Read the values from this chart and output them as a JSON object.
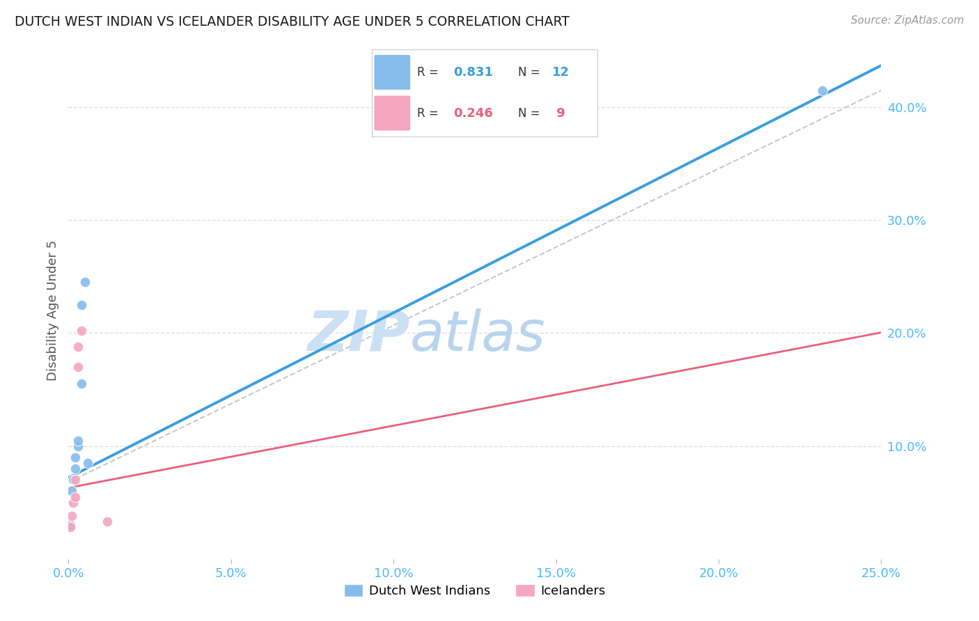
{
  "title": "DUTCH WEST INDIAN VS ICELANDER DISABILITY AGE UNDER 5 CORRELATION CHART",
  "source": "Source: ZipAtlas.com",
  "ylabel": "Disability Age Under 5",
  "xlim": [
    0.0,
    0.25
  ],
  "ylim": [
    0.0,
    0.44
  ],
  "xticks": [
    0.0,
    0.05,
    0.1,
    0.15,
    0.2,
    0.25
  ],
  "yticks": [
    0.1,
    0.2,
    0.3,
    0.4
  ],
  "ytick_labels": [
    "10.0%",
    "20.0%",
    "30.0%",
    "40.0%"
  ],
  "xtick_labels": [
    "0.0%",
    "5.0%",
    "10.0%",
    "15.0%",
    "20.0%",
    "25.0%"
  ],
  "blue_points": [
    [
      0.0005,
      0.03
    ],
    [
      0.001,
      0.06
    ],
    [
      0.0015,
      0.07
    ],
    [
      0.002,
      0.08
    ],
    [
      0.002,
      0.09
    ],
    [
      0.003,
      0.1
    ],
    [
      0.003,
      0.105
    ],
    [
      0.004,
      0.155
    ],
    [
      0.004,
      0.225
    ],
    [
      0.005,
      0.245
    ],
    [
      0.006,
      0.085
    ],
    [
      0.232,
      0.415
    ]
  ],
  "pink_points": [
    [
      0.0005,
      0.028
    ],
    [
      0.001,
      0.038
    ],
    [
      0.0015,
      0.05
    ],
    [
      0.002,
      0.055
    ],
    [
      0.002,
      0.07
    ],
    [
      0.003,
      0.17
    ],
    [
      0.003,
      0.188
    ],
    [
      0.004,
      0.202
    ],
    [
      0.012,
      0.033
    ]
  ],
  "R_blue": "0.831",
  "N_blue": "12",
  "R_pink": "0.246",
  "N_pink": " 9",
  "blue_color": "#85bcec",
  "pink_color": "#f4a7be",
  "line_blue": "#3a9de0",
  "line_pink": "#e8607a",
  "ref_line_color": "#c8c8c8",
  "grid_color": "#e0e0e0",
  "title_color": "#1a1a1a",
  "axis_label_color": "#555555",
  "tick_color": "#4db8ff",
  "legend_border_color": "#cccccc",
  "background_color": "#ffffff",
  "watermark_zip_color": "#cce0f5",
  "watermark_atlas_color": "#b8d4ef",
  "dot_size": 110,
  "blue_line_intercept": 0.072,
  "blue_line_slope": 1.46,
  "pink_line_intercept": 0.063,
  "pink_line_slope": 0.55,
  "ref_line_y0": 0.068,
  "ref_line_y1": 0.415
}
